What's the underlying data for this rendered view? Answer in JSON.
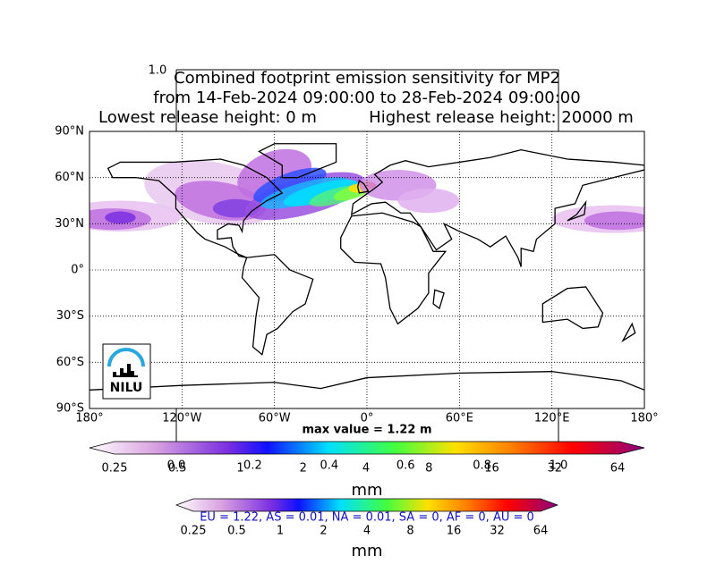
{
  "overlay_tick_top": "1.0",
  "title": {
    "line1": "Combined footprint emission sensitivity for MP2",
    "line2": "from 14-Feb-2024 09:00:00 to 28-Feb-2024 09:00:00",
    "lowest": "Lowest release height: 0 m",
    "highest": "Highest release height: 20000 m"
  },
  "map": {
    "lat_labels": [
      "90°N",
      "60°N",
      "30°N",
      "0°",
      "30°S",
      "60°S",
      "90°S"
    ],
    "lon_labels": [
      "180°",
      "120°W",
      "60°W",
      "0°",
      "60°E",
      "120°E",
      "180°"
    ],
    "max_value": "max value = 1.22 m",
    "logo": "NILU"
  },
  "colorbar1": {
    "ticks": [
      "0.25",
      "0.5",
      "1",
      "2",
      "4",
      "8",
      "16",
      "32",
      "64"
    ],
    "label": "mm"
  },
  "overlay_ticks": [
    "0.0",
    "0.2",
    "0.4",
    "0.6",
    "0.8",
    "1.0"
  ],
  "colorbar2": {
    "ticks": [
      "0.25",
      "0.5",
      "1",
      "2",
      "4",
      "8",
      "16",
      "32",
      "64"
    ],
    "label": "mm"
  },
  "regions": "EU = 1.22,  AS = 0.01,  NA = 0.01,  SA = 0,  AF = 0,  AU = 0"
}
